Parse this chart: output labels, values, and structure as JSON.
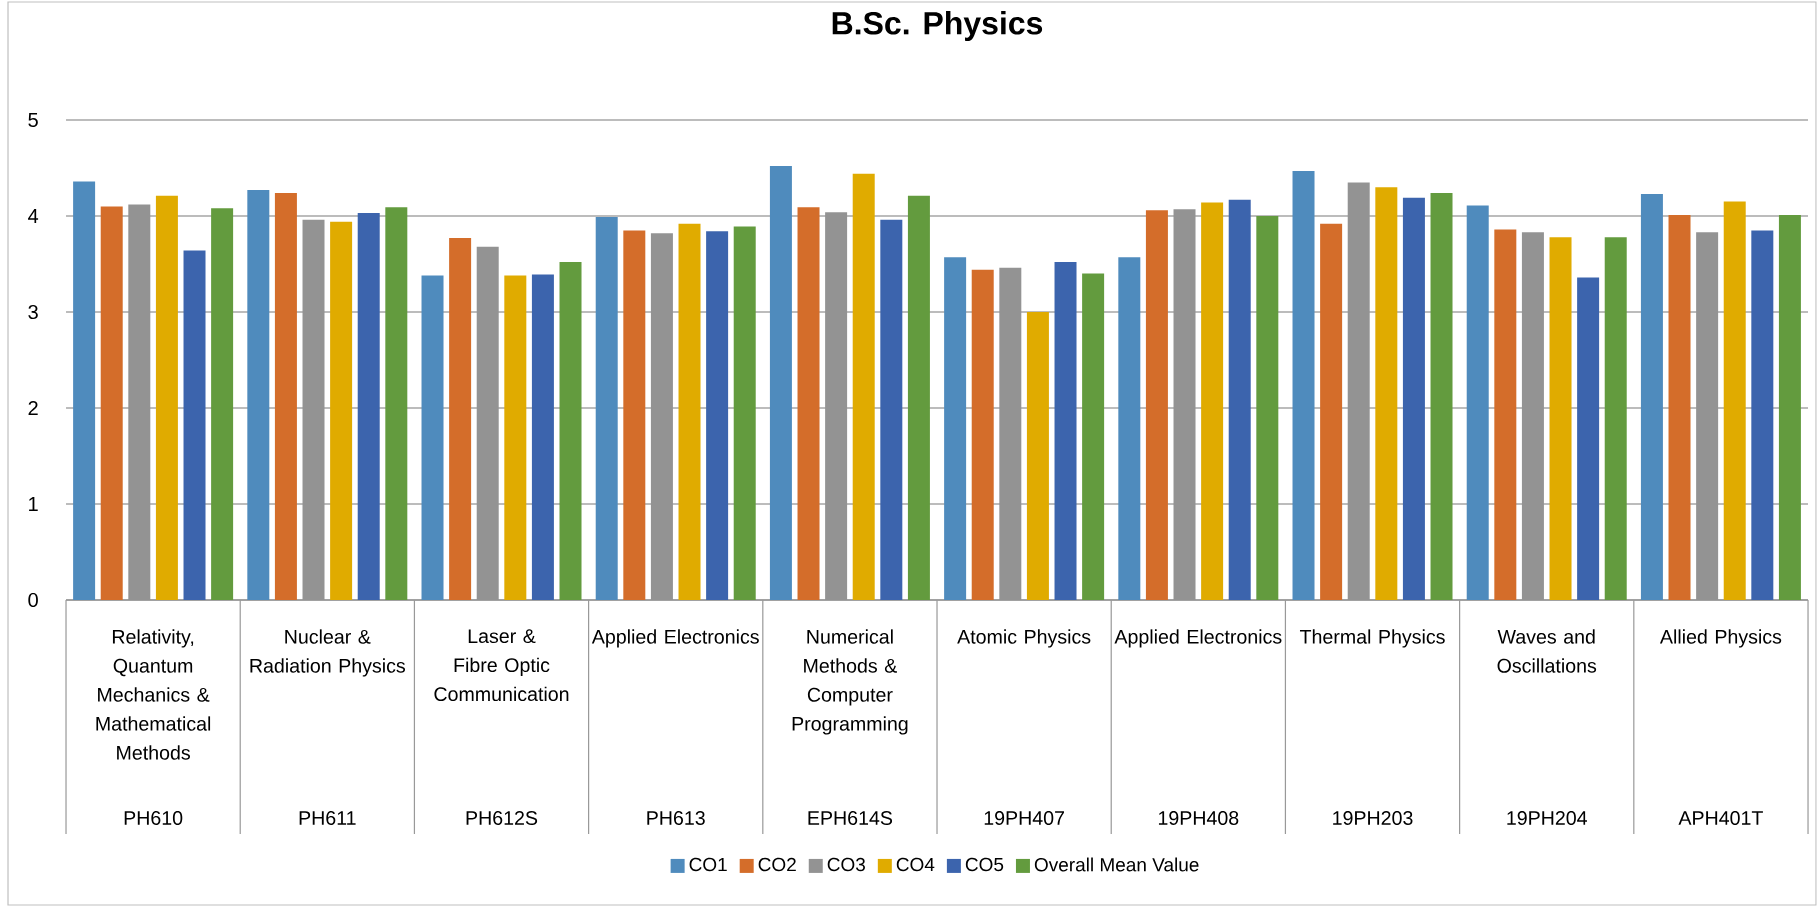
{
  "chart_data": {
    "type": "bar",
    "title": "B.Sc. Physics",
    "categories": [
      "Relativity, Quantum Mechanics & Mathematical Methods",
      "Nuclear & Radiation Physics",
      "Laser & Fibre Optic Communication",
      "Applied Electronics",
      "Numerical Methods & Computer Programming",
      "Atomic Physics",
      "Applied Electronics",
      "Thermal Physics",
      "Waves and Oscillations",
      "Allied Physics"
    ],
    "annotations": [
      "PH610",
      "PH611",
      "PH612S",
      "PH613",
      "EPH614S",
      "19PH407",
      "19PH408",
      "19PH203",
      "19PH204",
      "APH401T"
    ],
    "series": [
      {
        "name": "CO1",
        "color": "#4f8bbd",
        "values": [
          4.36,
          4.27,
          3.38,
          3.99,
          4.52,
          3.57,
          3.57,
          4.47,
          4.11,
          4.23
        ]
      },
      {
        "name": "CO2",
        "color": "#d46d2a",
        "values": [
          4.1,
          4.24,
          3.77,
          3.85,
          4.09,
          3.44,
          4.06,
          3.92,
          3.86,
          4.01
        ]
      },
      {
        "name": "CO3",
        "color": "#939393",
        "values": [
          4.12,
          3.96,
          3.68,
          3.82,
          4.04,
          3.46,
          4.07,
          4.35,
          3.83,
          3.83
        ]
      },
      {
        "name": "CO4",
        "color": "#e0ab00",
        "values": [
          4.21,
          3.94,
          3.38,
          3.92,
          4.44,
          3.0,
          4.14,
          4.3,
          3.78,
          4.15
        ]
      },
      {
        "name": "CO5",
        "color": "#3c64ad",
        "values": [
          3.64,
          4.03,
          3.39,
          3.84,
          3.96,
          3.52,
          4.17,
          4.19,
          3.36,
          3.85
        ]
      },
      {
        "name": "Overall Mean Value",
        "color": "#639b3e",
        "values": [
          4.08,
          4.09,
          3.52,
          3.89,
          4.21,
          3.4,
          4.0,
          4.24,
          3.78,
          4.01
        ]
      }
    ],
    "ylim": [
      0,
      5
    ],
    "yticks": [
      0,
      1,
      2,
      3,
      4,
      5
    ],
    "grid": "y",
    "legend": "bottom"
  }
}
